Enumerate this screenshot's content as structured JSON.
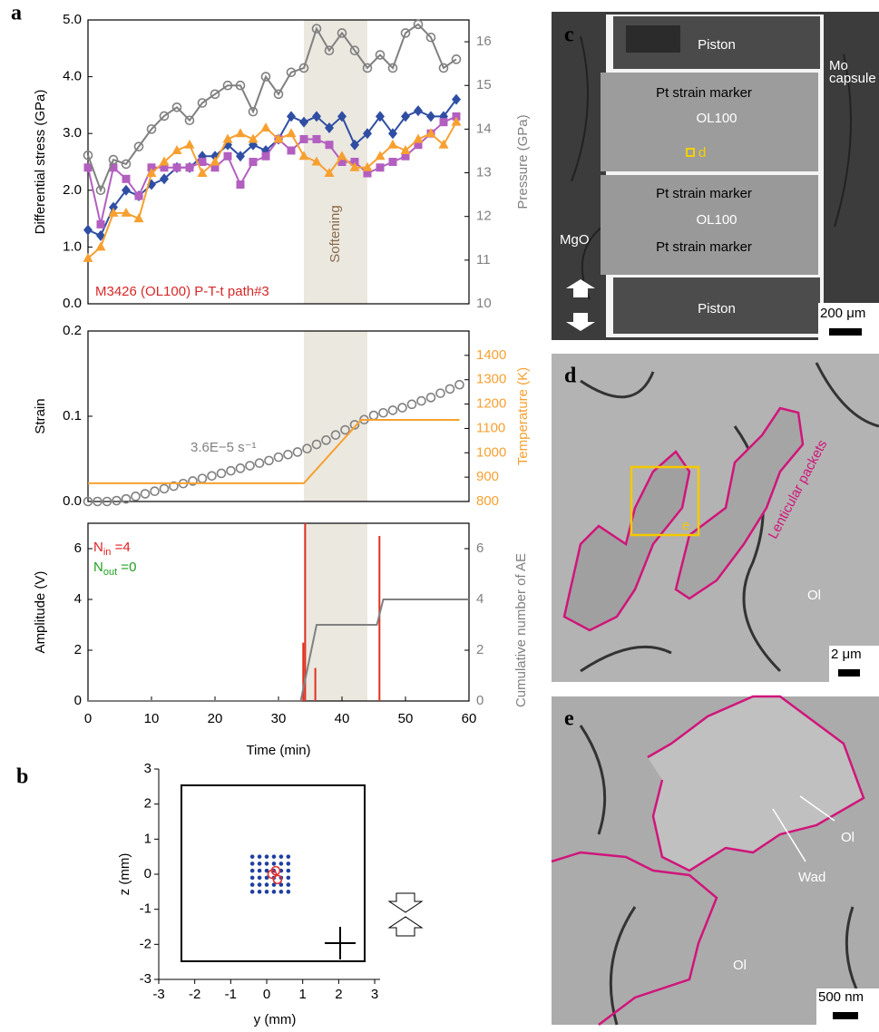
{
  "panel_labels": [
    "a",
    "b",
    "c",
    "d",
    "e"
  ],
  "chart_data": [
    {
      "type": "line",
      "ylabel": "Differential stress (GPa)",
      "y2label": "Pressure (GPa)",
      "annotation": "M3426 (OL100) P-T-t path#3",
      "shade_label": "Softening",
      "shade": [
        34,
        44
      ],
      "xlim": [
        0,
        60
      ],
      "ylim": [
        0,
        5
      ],
      "yticks": [
        {
          "value": 0,
          "label": "0.0"
        },
        {
          "value": 1,
          "label": "1.0"
        },
        {
          "value": 2,
          "label": "2.0"
        },
        {
          "value": 3,
          "label": "3.0"
        },
        {
          "value": 4,
          "label": "4.0"
        },
        {
          "value": 5,
          "label": "5.0"
        }
      ],
      "y2lim": [
        10,
        16.5
      ],
      "y2ticks": [
        10,
        11,
        12,
        13,
        14,
        15,
        16
      ],
      "x": [
        0,
        2,
        4,
        6,
        8,
        10,
        12,
        14,
        16,
        18,
        20,
        22,
        24,
        26,
        28,
        30,
        32,
        34,
        36,
        38,
        40,
        42,
        44,
        46,
        48,
        50,
        52,
        54,
        56,
        58
      ],
      "series": [
        {
          "color": "#2f4ea3",
          "marker": "diamond",
          "values": [
            1.3,
            1.2,
            1.7,
            2.0,
            1.9,
            2.1,
            2.2,
            2.4,
            2.4,
            2.6,
            2.6,
            2.8,
            2.6,
            2.8,
            2.7,
            2.9,
            3.3,
            3.2,
            3.3,
            3.1,
            3.3,
            2.8,
            3.0,
            3.3,
            3.0,
            3.3,
            3.4,
            3.3,
            3.3,
            3.6
          ]
        },
        {
          "color": "#b35fc0",
          "marker": "square",
          "values": [
            2.4,
            1.4,
            2.4,
            2.2,
            1.9,
            2.4,
            2.4,
            2.4,
            2.4,
            2.5,
            2.4,
            2.6,
            2.1,
            2.5,
            2.6,
            2.9,
            2.7,
            2.9,
            2.9,
            2.8,
            2.5,
            2.5,
            2.3,
            2.4,
            2.5,
            2.6,
            2.8,
            3.0,
            3.2,
            3.3
          ]
        },
        {
          "color": "#f7a030",
          "marker": "triangle",
          "values": [
            0.8,
            1.0,
            1.6,
            1.6,
            1.5,
            2.3,
            2.5,
            2.7,
            2.8,
            2.3,
            2.5,
            2.9,
            3.0,
            2.9,
            3.1,
            2.9,
            3.0,
            2.6,
            2.5,
            2.3,
            2.6,
            2.4,
            2.4,
            2.6,
            2.8,
            2.7,
            2.9,
            3.0,
            2.8,
            3.2
          ]
        },
        {
          "color": "#808080",
          "marker": "open-circle",
          "axis": "y2",
          "values": [
            13.4,
            12.6,
            13.3,
            13.2,
            13.6,
            14.0,
            14.3,
            14.5,
            14.2,
            14.6,
            14.8,
            15.0,
            15.0,
            14.4,
            15.2,
            14.8,
            15.3,
            15.4,
            16.3,
            15.8,
            16.2,
            15.8,
            15.4,
            15.7,
            15.4,
            16.2,
            16.4,
            16.1,
            15.4,
            15.6
          ]
        }
      ]
    },
    {
      "type": "line",
      "ylabel": "Strain",
      "y2label": "Temperature (K)",
      "annotation": "3.6E−5 s⁻¹",
      "shade": [
        34,
        44
      ],
      "xlim": [
        0,
        60
      ],
      "ylim": [
        0,
        0.2
      ],
      "yticks": [
        {
          "value": 0,
          "label": "0.0"
        },
        {
          "value": 0.1,
          "label": "0.1"
        },
        {
          "value": 0.2,
          "label": "0.2"
        }
      ],
      "y2lim": [
        800,
        1500
      ],
      "y2ticks": [
        800,
        900,
        1000,
        1100,
        1200,
        1300,
        1400
      ],
      "series": [
        {
          "color": "#808080",
          "marker": "open-circle",
          "connect": false,
          "x": [
            0,
            1.5,
            3,
            4.5,
            6,
            7.5,
            9,
            10.5,
            12,
            13.5,
            15,
            16.5,
            18,
            19.5,
            21,
            22.5,
            24,
            25.5,
            27,
            28.5,
            30,
            31.5,
            33,
            34.5,
            36,
            37.5,
            39,
            40.5,
            42,
            43.5,
            45,
            46.5,
            48,
            49.5,
            51,
            52.5,
            54,
            55.5,
            57,
            58.5
          ],
          "values": [
            0,
            0,
            0,
            0.001,
            0.003,
            0.006,
            0.009,
            0.012,
            0.015,
            0.018,
            0.021,
            0.024,
            0.027,
            0.03,
            0.033,
            0.036,
            0.039,
            0.042,
            0.045,
            0.048,
            0.052,
            0.055,
            0.058,
            0.062,
            0.067,
            0.072,
            0.078,
            0.084,
            0.09,
            0.096,
            0.101,
            0.104,
            0.107,
            0.11,
            0.114,
            0.118,
            0.122,
            0.127,
            0.132,
            0.137
          ]
        },
        {
          "color": "#f7a030",
          "marker": "none",
          "axis": "y2",
          "x": [
            0,
            34,
            43,
            58.5
          ],
          "values": [
            875,
            875,
            1135,
            1135
          ]
        }
      ]
    },
    {
      "type": "line",
      "ylabel": "Amplitude (V)",
      "y2label": "Cumulative number of AE",
      "xlabel": "Time (min)",
      "shade": [
        34,
        44
      ],
      "xlim": [
        0,
        60
      ],
      "xticks": [
        0,
        10,
        20,
        30,
        40,
        50,
        60
      ],
      "ylim": [
        0,
        7
      ],
      "yticks": [
        0,
        2,
        4,
        6
      ],
      "y2lim": [
        0,
        7
      ],
      "y2ticks": [
        0,
        2,
        4,
        6
      ],
      "counts": [
        {
          "symbol": "N",
          "subscript": "in",
          "text": " =4",
          "color": "#e02020"
        },
        {
          "symbol": "N",
          "subscript": "out",
          "text": " =0",
          "color": "#20a020"
        }
      ],
      "series": [
        {
          "color": "#e03020",
          "marker": "stem",
          "x": [
            33.9,
            34.2,
            35.8,
            45.9
          ],
          "values": [
            2.3,
            7,
            1.3,
            6.5
          ]
        },
        {
          "color": "#808080",
          "marker": "none",
          "axis": "y2",
          "x": [
            0,
            33.5,
            36,
            45.5,
            46.5,
            60
          ],
          "values": [
            0,
            0,
            3,
            3,
            4,
            4
          ]
        }
      ]
    },
    {
      "type": "scatter",
      "xlabel": "y (mm)",
      "ylabel": "z (mm)",
      "xlim": [
        -3,
        3.15
      ],
      "xticks": [
        -3,
        -2,
        -1,
        0,
        1,
        2,
        3
      ],
      "ylim": [
        -3,
        3
      ],
      "yticks": [
        -3,
        -2,
        -1,
        0,
        1,
        2,
        3
      ],
      "series": [
        {
          "color": "#2040a0",
          "marker": "dot",
          "x": [
            -0.4,
            -0.2,
            0,
            0.2,
            0.4,
            0.6,
            -0.4,
            -0.2,
            0,
            0.2,
            0.4,
            0.6,
            -0.4,
            -0.2,
            0,
            0.2,
            0.4,
            0.6,
            -0.4,
            -0.2,
            0,
            0.2,
            0.4,
            0.6,
            -0.4,
            -0.2,
            0,
            0.2,
            0.4,
            0.6,
            -0.4,
            -0.2,
            0,
            0.2,
            0.4,
            0.6
          ],
          "values": [
            0.5,
            0.5,
            0.5,
            0.5,
            0.5,
            0.5,
            0.3,
            0.3,
            0.3,
            0.3,
            0.3,
            0.3,
            0.1,
            0.1,
            0.1,
            0.1,
            0.1,
            0.1,
            -0.1,
            -0.1,
            -0.1,
            -0.1,
            -0.1,
            -0.1,
            -0.3,
            -0.3,
            -0.3,
            -0.3,
            -0.3,
            -0.3,
            -0.5,
            -0.5,
            -0.5,
            -0.5,
            -0.5,
            -0.5
          ]
        },
        {
          "color": "#e03030",
          "marker": "open-circle",
          "x": [
            0.15,
            0.3,
            0.25
          ],
          "values": [
            0,
            -0.15,
            0.1
          ]
        }
      ]
    }
  ],
  "micrographs": {
    "c": {
      "piston_top": "Piston",
      "marker_1": "Pt strain marker",
      "ol_1": "OL100",
      "box": "d",
      "marker_2": "Pt strain marker",
      "ol_2": "OL100",
      "mgo": "MgO",
      "marker_3": "Pt strain marker",
      "piston_bottom": "Piston",
      "capsule": [
        "Mo",
        "capsule"
      ],
      "scale": "200 μm"
    },
    "d": {
      "packets": "Lenticular packets",
      "box": "e",
      "ol": "Ol",
      "scale": "2 μm"
    },
    "e": {
      "ol_1": "Ol",
      "wad": "Wad",
      "ol_2": "Ol",
      "scale": "500 nm"
    }
  }
}
